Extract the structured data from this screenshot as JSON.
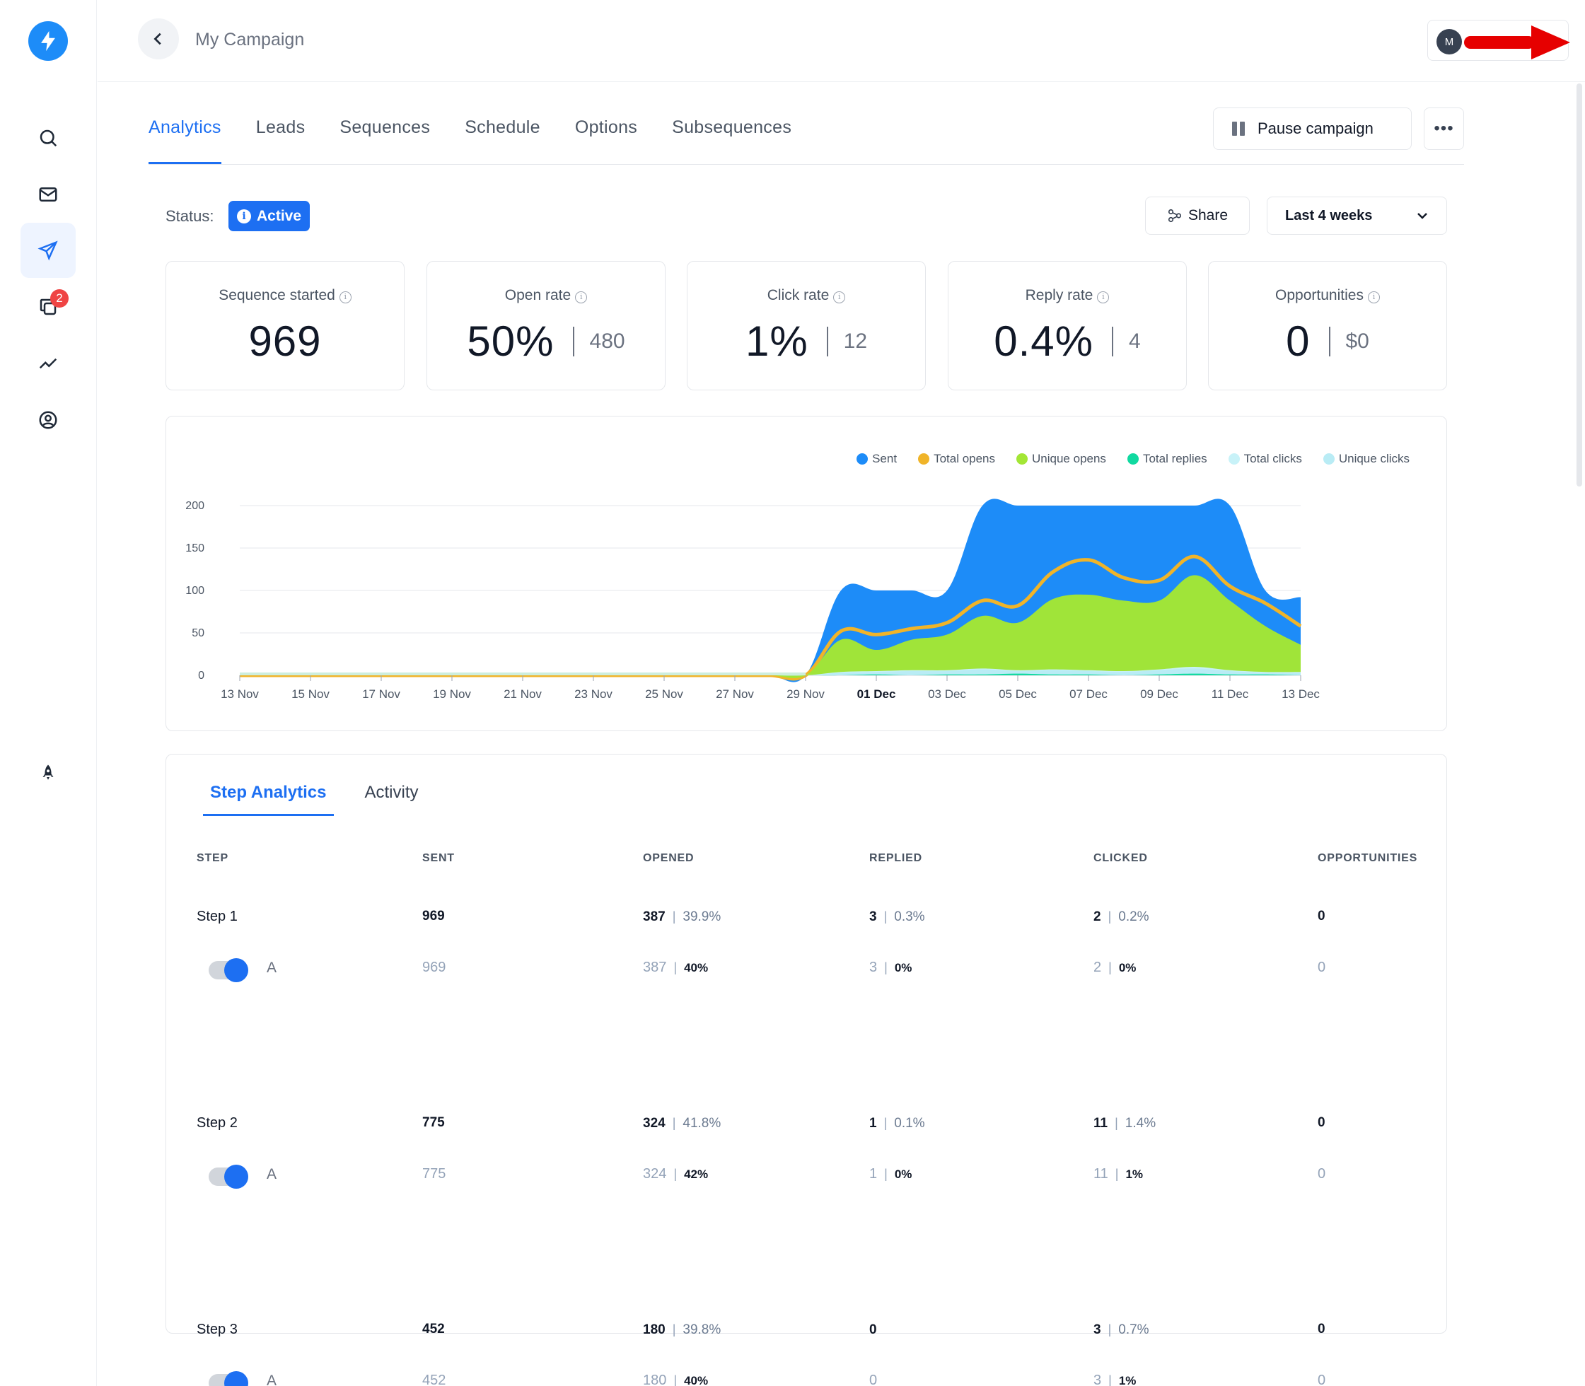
{
  "header": {
    "title": "My Campaign",
    "user_initial": "M"
  },
  "sidebar": {
    "notification_count": "2"
  },
  "tabs": [
    "Analytics",
    "Leads",
    "Sequences",
    "Schedule",
    "Options",
    "Subsequences"
  ],
  "actions": {
    "pause_label": "Pause campaign",
    "more_label": "•••",
    "share_label": "Share",
    "range_label": "Last 4 weeks"
  },
  "status": {
    "label": "Status:",
    "value": "Active"
  },
  "stats": [
    {
      "title": "Sequence started",
      "value": "969",
      "secondary": ""
    },
    {
      "title": "Open rate",
      "value": "50%",
      "secondary": "480"
    },
    {
      "title": "Click rate",
      "value": "1%",
      "secondary": "12"
    },
    {
      "title": "Reply rate",
      "value": "0.4%",
      "secondary": "4"
    },
    {
      "title": "Opportunities",
      "value": "0",
      "secondary": "$0"
    }
  ],
  "chart_data": {
    "type": "area",
    "title": "",
    "xlabel": "",
    "ylabel": "",
    "ylim": [
      0,
      200
    ],
    "yticks": [
      0,
      50,
      100,
      150,
      200
    ],
    "x": [
      "13 Nov",
      "14 Nov",
      "15 Nov",
      "16 Nov",
      "17 Nov",
      "18 Nov",
      "19 Nov",
      "20 Nov",
      "21 Nov",
      "22 Nov",
      "23 Nov",
      "24 Nov",
      "25 Nov",
      "26 Nov",
      "27 Nov",
      "28 Nov",
      "29 Nov",
      "30 Nov",
      "01 Dec",
      "02 Dec",
      "03 Dec",
      "04 Dec",
      "05 Dec",
      "06 Dec",
      "07 Dec",
      "08 Dec",
      "09 Dec",
      "10 Dec",
      "11 Dec",
      "12 Dec",
      "13 Dec"
    ],
    "xtick_labels": [
      "13 Nov",
      "15 Nov",
      "17 Nov",
      "19 Nov",
      "21 Nov",
      "23 Nov",
      "25 Nov",
      "27 Nov",
      "29 Nov",
      "01 Dec",
      "03 Dec",
      "05 Dec",
      "07 Dec",
      "09 Dec",
      "11 Dec",
      "13 Dec"
    ],
    "highlight_tick": "01 Dec",
    "legend_position": "top-right",
    "series": [
      {
        "name": "Sent",
        "color": "#1d8cf8",
        "values": [
          0,
          0,
          0,
          0,
          0,
          0,
          0,
          0,
          0,
          0,
          0,
          0,
          0,
          0,
          0,
          0,
          0,
          100,
          100,
          100,
          100,
          200,
          200,
          200,
          200,
          200,
          200,
          200,
          200,
          100,
          92
        ]
      },
      {
        "name": "Total opens",
        "color": "#f0b429",
        "values": [
          0,
          0,
          0,
          0,
          0,
          0,
          0,
          0,
          0,
          0,
          0,
          0,
          0,
          0,
          0,
          0,
          0,
          52,
          48,
          55,
          62,
          88,
          82,
          122,
          136,
          115,
          112,
          140,
          105,
          85,
          58
        ]
      },
      {
        "name": "Unique opens",
        "color": "#a3e635",
        "values": [
          0,
          0,
          0,
          0,
          0,
          0,
          0,
          0,
          0,
          0,
          0,
          0,
          0,
          0,
          0,
          0,
          0,
          42,
          30,
          42,
          48,
          70,
          62,
          90,
          95,
          88,
          88,
          118,
          88,
          58,
          36
        ]
      },
      {
        "name": "Total replies",
        "color": "#10d9a0",
        "values": [
          0,
          0,
          0,
          0,
          0,
          0,
          0,
          0,
          0,
          0,
          0,
          0,
          0,
          0,
          0,
          0,
          0,
          0,
          1,
          0,
          1,
          1,
          2,
          1,
          1,
          0,
          1,
          2,
          1,
          1,
          0
        ]
      },
      {
        "name": "Total clicks",
        "color": "#c8f2f8",
        "values": [
          0,
          0,
          0,
          0,
          0,
          0,
          0,
          0,
          0,
          0,
          0,
          0,
          0,
          0,
          0,
          0,
          0,
          4,
          5,
          6,
          6,
          8,
          6,
          7,
          6,
          5,
          7,
          10,
          6,
          4,
          4
        ]
      },
      {
        "name": "Unique clicks",
        "color": "#b9ecf5",
        "values": [
          0,
          0,
          0,
          0,
          0,
          0,
          0,
          0,
          0,
          0,
          0,
          0,
          0,
          0,
          0,
          0,
          0,
          3,
          4,
          5,
          5,
          7,
          5,
          6,
          5,
          4,
          6,
          8,
          5,
          3,
          3
        ]
      }
    ]
  },
  "step_tabs": [
    "Step Analytics",
    "Activity"
  ],
  "table": {
    "headers": [
      "STEP",
      "SENT",
      "OPENED",
      "REPLIED",
      "CLICKED",
      "OPPORTUNITIES"
    ],
    "steps": [
      {
        "name": "Step 1",
        "sent": "969",
        "opened": "387",
        "opened_pct": "39.9%",
        "replied": "3",
        "replied_pct": "0.3%",
        "clicked": "2",
        "clicked_pct": "0.2%",
        "opps": "0",
        "variant": {
          "letter": "A",
          "sent": "969",
          "opened": "387",
          "opened_pct": "40%",
          "replied": "3",
          "replied_pct": "0%",
          "clicked": "2",
          "clicked_pct": "0%",
          "opps": "0"
        }
      },
      {
        "name": "Step 2",
        "sent": "775",
        "opened": "324",
        "opened_pct": "41.8%",
        "replied": "1",
        "replied_pct": "0.1%",
        "clicked": "11",
        "clicked_pct": "1.4%",
        "opps": "0",
        "variant": {
          "letter": "A",
          "sent": "775",
          "opened": "324",
          "opened_pct": "42%",
          "replied": "1",
          "replied_pct": "0%",
          "clicked": "11",
          "clicked_pct": "1%",
          "opps": "0"
        }
      },
      {
        "name": "Step 3",
        "sent": "452",
        "opened": "180",
        "opened_pct": "39.8%",
        "replied": "0",
        "replied_pct": "",
        "clicked": "3",
        "clicked_pct": "0.7%",
        "opps": "0",
        "variant": {
          "letter": "A",
          "sent": "452",
          "opened": "180",
          "opened_pct": "40%",
          "replied": "0",
          "replied_pct": "",
          "clicked": "3",
          "clicked_pct": "1%",
          "opps": "0"
        }
      }
    ]
  },
  "colors": {
    "accent": "#1d6ff2",
    "logo": "#1d8cf8",
    "badge": "#ef4444"
  }
}
